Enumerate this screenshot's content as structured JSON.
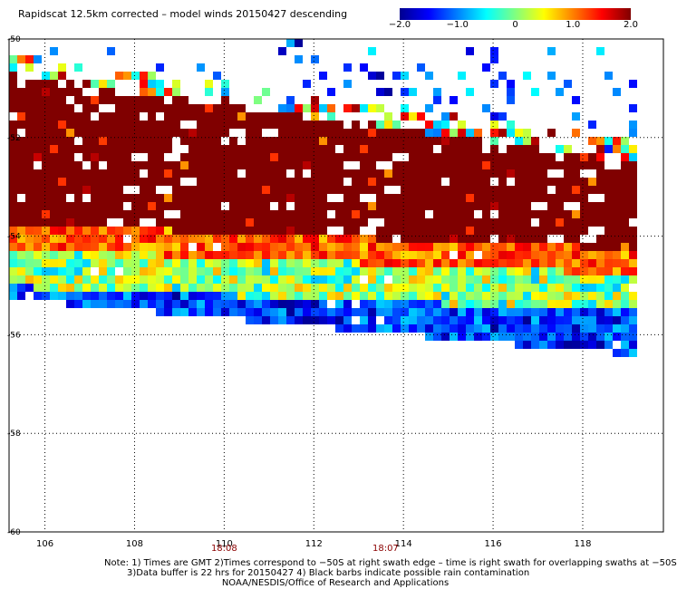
{
  "title": "Rapidscat 12.5km corrected – model winds 20150427 descending",
  "colorbar": {
    "colors": [
      "#00008f",
      "#0000ff",
      "#0080ff",
      "#00ffff",
      "#80ff80",
      "#ffff00",
      "#ff8000",
      "#ff0000",
      "#800000"
    ],
    "ticks": [
      {
        "value": -2.0,
        "label": "−2.0"
      },
      {
        "value": -1.0,
        "label": "−1.0"
      },
      {
        "value": 0,
        "label": "0"
      },
      {
        "value": 1.0,
        "label": "1.0"
      },
      {
        "value": 2.0,
        "label": "2.0"
      }
    ],
    "range": [
      -2.0,
      2.0
    ]
  },
  "time_labels": [
    {
      "lon": 110.0,
      "label": "18:08"
    },
    {
      "lon": 113.6,
      "label": "18:07"
    }
  ],
  "notes": {
    "line1": "Note: 1) Times are GMT 2)Times correspond to −50S at right swath edge – time is right swath for overlapping swaths at −50S",
    "line2": "3)Data buffer is 22 hrs for 20150427 4) Black barbs indicate possible rain contamination",
    "line3": "NOAA/NESDIS/Office of Research and Applications"
  },
  "chart_data": {
    "type": "heatmap",
    "title": "Rapidscat 12.5km corrected – model winds 20150427 descending",
    "xlabel": "",
    "ylabel": "",
    "xlim": [
      105.2,
      119.8
    ],
    "ylim": [
      -60,
      -50
    ],
    "x_ticks": [
      106,
      108,
      110,
      112,
      114,
      116,
      118
    ],
    "y_ticks": [
      {
        "value": -50,
        "label": "-50"
      },
      {
        "value": -52,
        "label": "-52"
      },
      {
        "value": -54,
        "label": "-54"
      },
      {
        "value": -56,
        "label": "-56"
      },
      {
        "value": -58,
        "label": "-58"
      },
      {
        "value": -60,
        "label": "-60"
      }
    ],
    "grid": true,
    "colorbar_range": [
      -2.0,
      2.0
    ],
    "swath_regions": [
      {
        "description": "scattered speckles",
        "lat_range": [
          -51.0,
          -50.0
        ],
        "value_mix": "blue"
      },
      {
        "description": "saturated positive difference",
        "lat_range": [
          -53.9,
          -50.6
        ],
        "value": 2.0
      },
      {
        "description": "positive transition band",
        "lat_range": [
          -54.7,
          -53.9
        ],
        "value_range": [
          0.6,
          1.6
        ]
      },
      {
        "description": "mixed near-zero",
        "lat_range": [
          -55.5,
          -54.7
        ],
        "value_range": [
          -0.8,
          0.8
        ]
      },
      {
        "description": "negative southern edge",
        "lat_range": [
          -56.4,
          -55.5
        ],
        "value_range": [
          -2.0,
          -0.8
        ]
      }
    ]
  }
}
